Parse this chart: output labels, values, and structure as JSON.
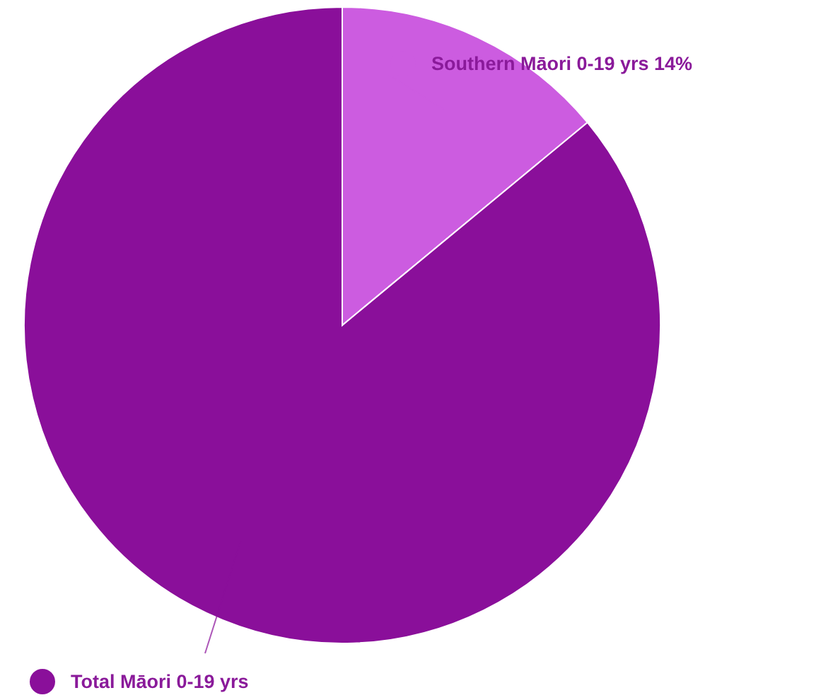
{
  "chart_data": {
    "type": "pie",
    "categories": [
      "Southern Māori 0-19 yrs",
      "Total Māori 0-19 yrs"
    ],
    "values": [
      14,
      86
    ],
    "colors": [
      "#cc5ce0",
      "#8a0f9a"
    ],
    "value_labels": [
      "14%",
      null
    ]
  }
}
